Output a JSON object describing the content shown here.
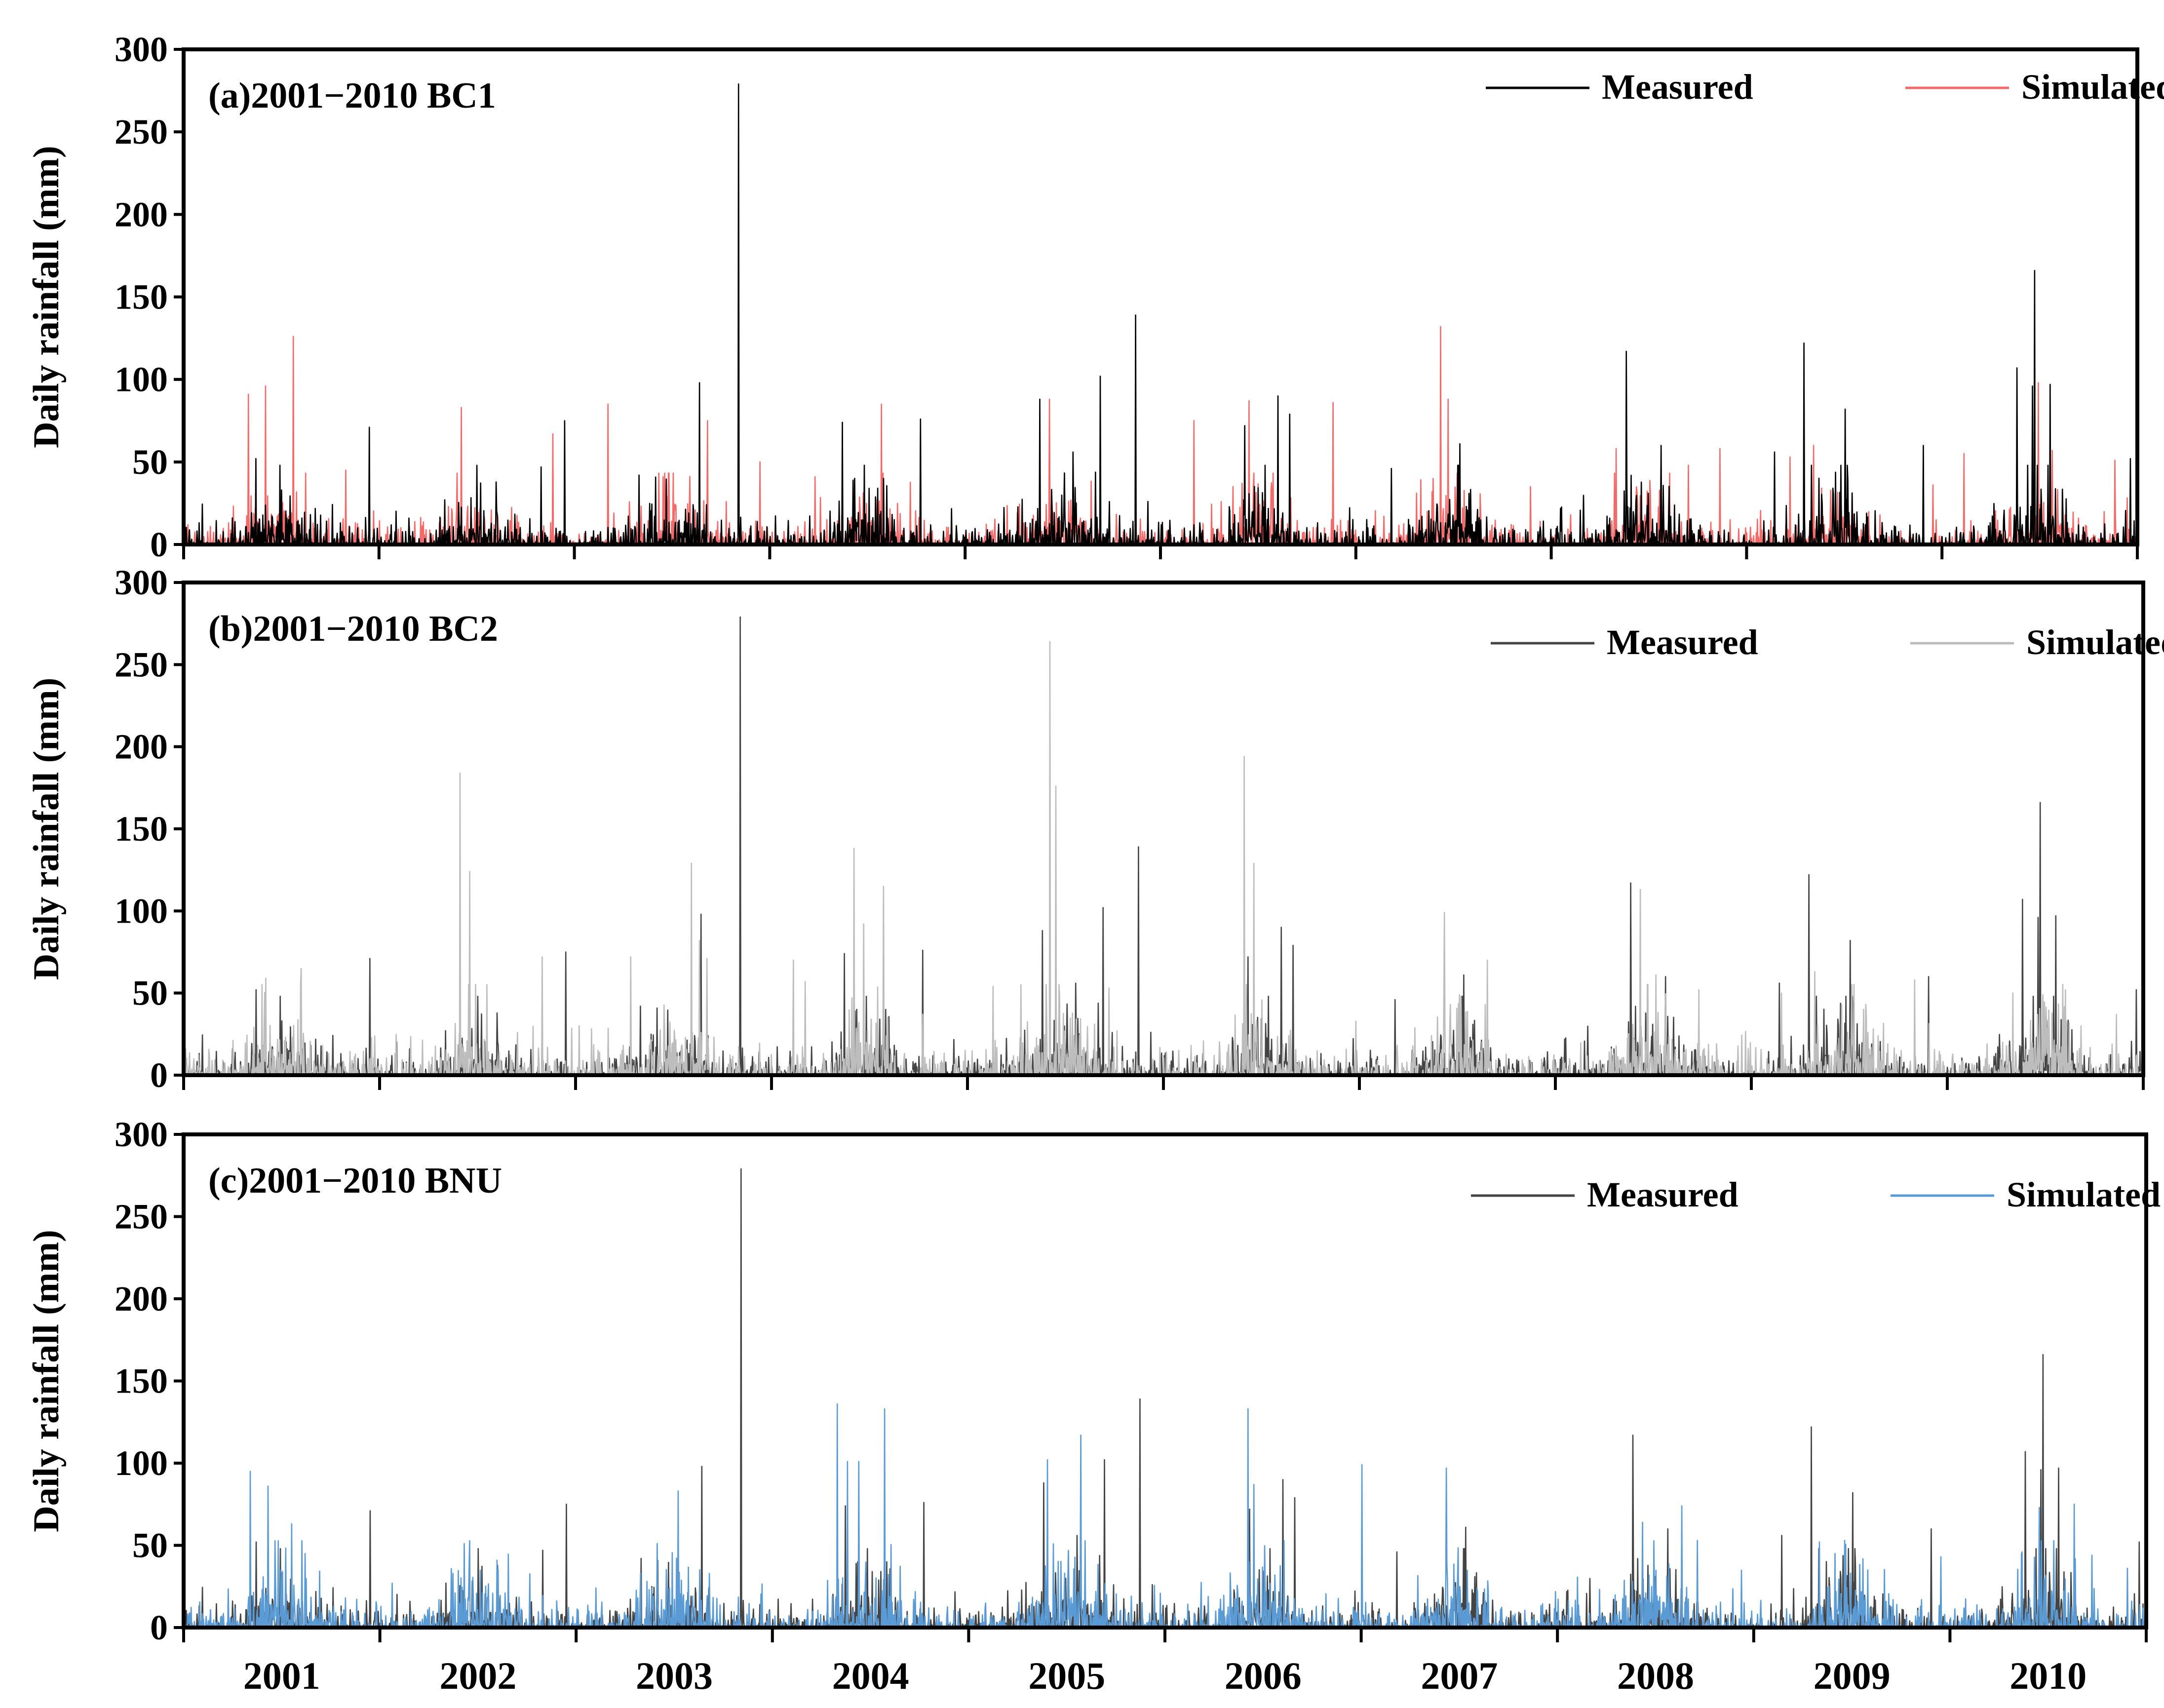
{
  "chart_data": [
    {
      "type": "line",
      "panel_label": "(a)2001−2010 BC1",
      "ylabel": "Daily rainfall (mm)",
      "ylim": [
        0,
        300
      ],
      "yticks": [
        0,
        50,
        100,
        150,
        200,
        250,
        300
      ],
      "x_tick_years": [
        "2001",
        "2002",
        "2003",
        "2004",
        "2005",
        "2006",
        "2007",
        "2008",
        "2009",
        "2010"
      ],
      "show_year_labels": false,
      "legend_position": "top-right",
      "series": [
        {
          "name": "Measured",
          "color": "#000000",
          "seed": 101,
          "scale": 1.0,
          "peaks": [
            [
              0.37,
              52
            ],
            [
              0.5,
              33
            ],
            [
              0.95,
              71
            ],
            [
              1.5,
              48
            ],
            [
              1.83,
              47
            ],
            [
              1.95,
              75
            ],
            [
              2.33,
              42
            ],
            [
              2.64,
              98
            ],
            [
              2.84,
              279
            ],
            [
              3.37,
              74
            ],
            [
              3.58,
              40
            ],
            [
              3.77,
              76
            ],
            [
              4.38,
              88
            ],
            [
              4.55,
              56
            ],
            [
              4.69,
              102
            ],
            [
              4.87,
              139
            ],
            [
              5.43,
              72
            ],
            [
              5.6,
              90
            ],
            [
              5.66,
              79
            ],
            [
              6.18,
              46
            ],
            [
              6.52,
              48
            ],
            [
              6.53,
              61
            ],
            [
              7.38,
              117
            ],
            [
              7.56,
              60
            ],
            [
              8.14,
              56
            ],
            [
              8.29,
              122
            ],
            [
              8.5,
              82
            ],
            [
              8.9,
              60
            ],
            [
              9.38,
              107
            ],
            [
              9.46,
              96
            ],
            [
              9.47,
              166
            ],
            [
              9.55,
              97
            ],
            [
              9.96,
              52
            ]
          ]
        },
        {
          "name": "Simulated",
          "color": "#f26b6b",
          "seed": 202,
          "scale": 0.9,
          "peaks": [
            [
              0.33,
              91
            ],
            [
              0.42,
              96
            ],
            [
              0.56,
              126
            ],
            [
              0.83,
              45
            ],
            [
              1.42,
              83
            ],
            [
              1.89,
              67
            ],
            [
              2.17,
              85
            ],
            [
              2.68,
              75
            ],
            [
              2.95,
              50
            ],
            [
              3.23,
              41
            ],
            [
              3.57,
              85
            ],
            [
              3.77,
              70
            ],
            [
              4.43,
              88
            ],
            [
              5.17,
              75
            ],
            [
              5.45,
              87
            ],
            [
              5.88,
              86
            ],
            [
              6.43,
              132
            ],
            [
              6.47,
              88
            ],
            [
              6.89,
              35
            ],
            [
              7.33,
              58
            ],
            [
              7.7,
              48
            ],
            [
              7.86,
              58
            ],
            [
              8.22,
              53
            ],
            [
              8.34,
              60
            ],
            [
              8.95,
              36
            ],
            [
              9.11,
              55
            ],
            [
              9.49,
              98
            ],
            [
              9.56,
              57
            ],
            [
              9.88,
              51
            ]
          ]
        }
      ]
    },
    {
      "type": "line",
      "panel_label": "(b)2001−2010 BC2",
      "ylabel": "Daily rainfall (mm)",
      "ylim": [
        0,
        300
      ],
      "yticks": [
        0,
        50,
        100,
        150,
        200,
        250,
        300
      ],
      "x_tick_years": [
        "2001",
        "2002",
        "2003",
        "2004",
        "2005",
        "2006",
        "2007",
        "2008",
        "2009",
        "2010"
      ],
      "show_year_labels": false,
      "legend_position": "top-right",
      "series": [
        {
          "name": "Measured",
          "color": "#444444",
          "seed": 101,
          "scale": 1.0,
          "peaks": [
            [
              0.37,
              52
            ],
            [
              0.5,
              33
            ],
            [
              0.95,
              71
            ],
            [
              1.5,
              48
            ],
            [
              1.83,
              47
            ],
            [
              1.95,
              75
            ],
            [
              2.33,
              42
            ],
            [
              2.64,
              98
            ],
            [
              2.84,
              279
            ],
            [
              3.37,
              74
            ],
            [
              3.58,
              40
            ],
            [
              3.77,
              76
            ],
            [
              4.38,
              88
            ],
            [
              4.55,
              56
            ],
            [
              4.69,
              102
            ],
            [
              4.87,
              139
            ],
            [
              5.43,
              72
            ],
            [
              5.6,
              90
            ],
            [
              5.66,
              79
            ],
            [
              6.18,
              46
            ],
            [
              6.52,
              48
            ],
            [
              6.53,
              61
            ],
            [
              7.38,
              117
            ],
            [
              7.56,
              60
            ],
            [
              8.14,
              56
            ],
            [
              8.29,
              122
            ],
            [
              8.5,
              82
            ],
            [
              8.9,
              60
            ],
            [
              9.38,
              107
            ],
            [
              9.46,
              96
            ],
            [
              9.47,
              166
            ],
            [
              9.55,
              97
            ],
            [
              9.96,
              52
            ]
          ]
        },
        {
          "name": "Simulated",
          "color": "#bdbdbd",
          "seed": 303,
          "scale": 1.15,
          "peaks": [
            [
              0.42,
              59
            ],
            [
              0.6,
              65
            ],
            [
              1.41,
              184
            ],
            [
              1.46,
              124
            ],
            [
              1.83,
              72
            ],
            [
              2.28,
              72
            ],
            [
              2.59,
              129
            ],
            [
              2.63,
              82
            ],
            [
              2.67,
              71
            ],
            [
              3.11,
              70
            ],
            [
              3.17,
              57
            ],
            [
              3.42,
              138
            ],
            [
              3.47,
              92
            ],
            [
              3.57,
              115
            ],
            [
              4.13,
              54
            ],
            [
              4.27,
              55
            ],
            [
              4.42,
              264
            ],
            [
              4.45,
              176
            ],
            [
              4.72,
              53
            ],
            [
              5.41,
              194
            ],
            [
              5.46,
              129
            ],
            [
              6.43,
              99
            ],
            [
              6.65,
              70
            ],
            [
              7.43,
              113
            ],
            [
              7.51,
              61
            ],
            [
              7.73,
              52
            ],
            [
              8.15,
              50
            ],
            [
              8.32,
              63
            ],
            [
              8.57,
              40
            ],
            [
              8.83,
              58
            ],
            [
              9.33,
              50
            ],
            [
              9.6,
              52
            ],
            [
              9.86,
              37
            ],
            [
              9.99,
              90
            ]
          ]
        }
      ]
    },
    {
      "type": "line",
      "panel_label": "(c)2001−2010 BNU",
      "ylabel": "Daily rainfall (mm)",
      "ylim": [
        0,
        300
      ],
      "yticks": [
        0,
        50,
        100,
        150,
        200,
        250,
        300
      ],
      "x_tick_years": [
        "2001",
        "2002",
        "2003",
        "2004",
        "2005",
        "2006",
        "2007",
        "2008",
        "2009",
        "2010"
      ],
      "show_year_labels": true,
      "legend_position": "top-right",
      "series": [
        {
          "name": "Measured",
          "color": "#444444",
          "seed": 101,
          "scale": 1.0,
          "peaks": [
            [
              0.37,
              52
            ],
            [
              0.5,
              33
            ],
            [
              0.95,
              71
            ],
            [
              1.5,
              48
            ],
            [
              1.83,
              47
            ],
            [
              1.95,
              75
            ],
            [
              2.33,
              42
            ],
            [
              2.64,
              98
            ],
            [
              2.84,
              279
            ],
            [
              3.37,
              74
            ],
            [
              3.58,
              40
            ],
            [
              3.77,
              76
            ],
            [
              4.38,
              88
            ],
            [
              4.55,
              56
            ],
            [
              4.69,
              102
            ],
            [
              4.87,
              139
            ],
            [
              5.43,
              72
            ],
            [
              5.6,
              90
            ],
            [
              5.66,
              79
            ],
            [
              6.18,
              46
            ],
            [
              6.52,
              48
            ],
            [
              6.53,
              61
            ],
            [
              7.38,
              117
            ],
            [
              7.56,
              60
            ],
            [
              8.14,
              56
            ],
            [
              8.29,
              122
            ],
            [
              8.5,
              82
            ],
            [
              8.9,
              60
            ],
            [
              9.38,
              107
            ],
            [
              9.46,
              96
            ],
            [
              9.47,
              166
            ],
            [
              9.55,
              97
            ],
            [
              9.96,
              52
            ]
          ]
        },
        {
          "name": "Simulated",
          "color": "#5b9bd5",
          "seed": 404,
          "scale": 1.1,
          "peaks": [
            [
              0.34,
              95
            ],
            [
              0.43,
              86
            ],
            [
              0.55,
              63
            ],
            [
              0.62,
              45
            ],
            [
              1.43,
              51
            ],
            [
              2.52,
              83
            ],
            [
              3.33,
              136
            ],
            [
              3.38,
              101
            ],
            [
              3.44,
              101
            ],
            [
              3.57,
              133
            ],
            [
              4.4,
              102
            ],
            [
              4.57,
              117
            ],
            [
              5.42,
              133
            ],
            [
              5.45,
              87
            ],
            [
              6.0,
              99
            ],
            [
              6.43,
              97
            ],
            [
              7.43,
              64
            ],
            [
              7.63,
              74
            ],
            [
              7.71,
              53
            ],
            [
              8.33,
              52
            ],
            [
              8.41,
              45
            ],
            [
              8.46,
              53
            ],
            [
              8.95,
              43
            ],
            [
              9.45,
              73
            ],
            [
              9.63,
              75
            ],
            [
              9.9,
              36
            ]
          ]
        }
      ]
    }
  ]
}
